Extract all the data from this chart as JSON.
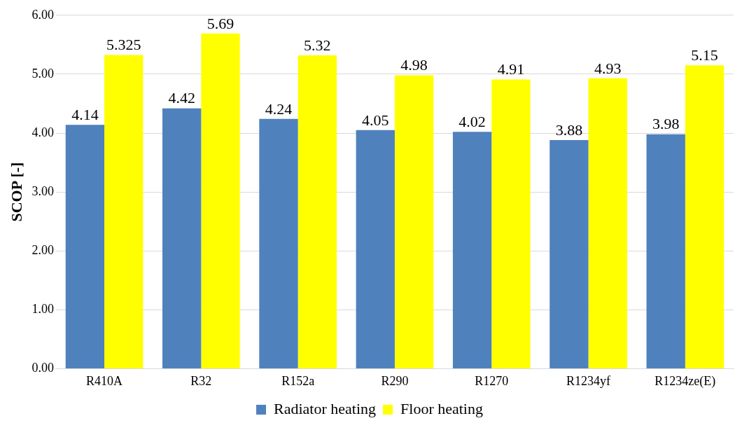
{
  "chart_data": {
    "type": "bar",
    "ylabel": "SCOP [-]",
    "categories": [
      "R410A",
      "R32",
      "R152a",
      "R290",
      "R1270",
      "R1234yf",
      "R1234ze(E)"
    ],
    "series": [
      {
        "name": "Radiator heating",
        "color": "#4f81bd",
        "values": [
          4.14,
          4.42,
          4.24,
          4.05,
          4.02,
          3.88,
          3.98
        ]
      },
      {
        "name": "Floor heating",
        "color": "#ffff00",
        "values": [
          5.325,
          5.69,
          5.32,
          4.98,
          4.91,
          4.93,
          5.15
        ]
      }
    ],
    "ylim": [
      0,
      6
    ],
    "yticks": [
      {
        "value": 0,
        "label": "0.00"
      },
      {
        "value": 1,
        "label": "1.00"
      },
      {
        "value": 2,
        "label": "2.00"
      },
      {
        "value": 3,
        "label": "3.00"
      },
      {
        "value": 4,
        "label": "4.00"
      },
      {
        "value": 5,
        "label": "5.00"
      },
      {
        "value": 6,
        "label": "6.00"
      }
    ],
    "grid": "y",
    "legend": "bottom",
    "data_labels": true
  }
}
